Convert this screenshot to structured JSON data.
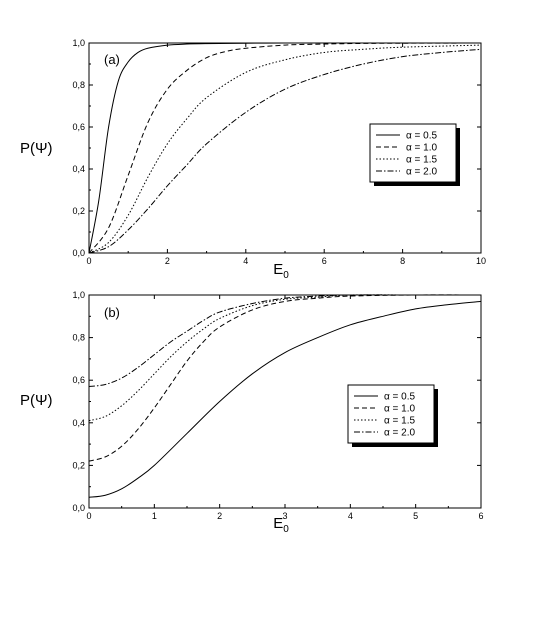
{
  "chart_data": [
    {
      "type": "line",
      "panel_label": "(a)",
      "xlabel": "E",
      "xlabel_sub": "0",
      "ylabel": "P(Ψ)",
      "xlim": [
        0,
        10
      ],
      "ylim": [
        0,
        1.0
      ],
      "xticks": [
        0,
        2,
        4,
        6,
        8,
        10
      ],
      "xtick_labels": [
        "0",
        "2",
        "4",
        "6",
        "8",
        "10"
      ],
      "yticks": [
        0,
        0.2,
        0.4,
        0.6,
        0.8,
        1.0
      ],
      "ytick_labels": [
        "0,0",
        "0,2",
        "0,4",
        "0,6",
        "0,8",
        "1,0"
      ],
      "legend_position": "right",
      "grid": false,
      "series": [
        {
          "name": "α = 0.5",
          "style": "solid",
          "x": [
            0,
            0.25,
            0.5,
            0.75,
            1.0,
            1.25,
            1.5,
            2.0,
            2.5,
            3.0,
            4.0,
            5.0,
            6.0,
            8.0,
            10.0
          ],
          "y": [
            0.0,
            0.25,
            0.6,
            0.82,
            0.91,
            0.955,
            0.975,
            0.99,
            0.995,
            0.997,
            0.999,
            1.0,
            1.0,
            1.0,
            1.0
          ]
        },
        {
          "name": "α = 1.0",
          "style": "dashed",
          "x": [
            0,
            0.5,
            1.0,
            1.5,
            2.0,
            2.5,
            3.0,
            3.5,
            4.0,
            5.0,
            6.0,
            7.0,
            8.0,
            10.0
          ],
          "y": [
            0.0,
            0.12,
            0.37,
            0.62,
            0.78,
            0.87,
            0.93,
            0.96,
            0.975,
            0.99,
            0.995,
            0.998,
            0.999,
            1.0
          ]
        },
        {
          "name": "α = 1.5",
          "style": "dotted",
          "x": [
            0,
            0.5,
            1.0,
            1.5,
            2.0,
            2.5,
            3.0,
            4.0,
            5.0,
            6.0,
            7.0,
            8.0,
            10.0
          ],
          "y": [
            0.0,
            0.05,
            0.18,
            0.36,
            0.52,
            0.64,
            0.74,
            0.86,
            0.92,
            0.955,
            0.97,
            0.98,
            0.99
          ]
        },
        {
          "name": "α = 2.0",
          "style": "dashdot",
          "x": [
            0,
            0.5,
            1.0,
            1.5,
            2.0,
            2.5,
            3.0,
            4.0,
            5.0,
            6.0,
            7.0,
            8.0,
            9.0,
            10.0
          ],
          "y": [
            0.0,
            0.03,
            0.11,
            0.21,
            0.32,
            0.42,
            0.52,
            0.67,
            0.78,
            0.85,
            0.9,
            0.935,
            0.955,
            0.97
          ]
        }
      ]
    },
    {
      "type": "line",
      "panel_label": "(b)",
      "xlabel": "E",
      "xlabel_sub": "0",
      "ylabel": "P(Ψ)",
      "xlim": [
        0,
        6
      ],
      "ylim": [
        0,
        1.0
      ],
      "xticks": [
        0,
        1,
        2,
        3,
        4,
        5,
        6
      ],
      "xtick_labels": [
        "0",
        "1",
        "2",
        "3",
        "4",
        "5",
        "6"
      ],
      "yticks": [
        0,
        0.2,
        0.4,
        0.6,
        0.8,
        1.0
      ],
      "ytick_labels": [
        "0,0",
        "0,2",
        "0,4",
        "0,6",
        "0,8",
        "1,0"
      ],
      "legend_position": "right",
      "grid": false,
      "series": [
        {
          "name": "α = 0.5",
          "style": "solid",
          "x": [
            0,
            0.25,
            0.5,
            0.75,
            1.0,
            1.5,
            2.0,
            2.5,
            3.0,
            3.5,
            4.0,
            4.5,
            5.0,
            5.5,
            6.0
          ],
          "y": [
            0.05,
            0.06,
            0.09,
            0.14,
            0.2,
            0.35,
            0.5,
            0.63,
            0.73,
            0.8,
            0.86,
            0.9,
            0.935,
            0.955,
            0.97
          ]
        },
        {
          "name": "α = 1.0",
          "style": "dashed",
          "x": [
            0,
            0.25,
            0.5,
            0.75,
            1.0,
            1.25,
            1.5,
            1.75,
            2.0,
            2.5,
            3.0,
            3.5,
            4.0,
            5.0,
            6.0
          ],
          "y": [
            0.22,
            0.24,
            0.29,
            0.37,
            0.47,
            0.58,
            0.69,
            0.78,
            0.85,
            0.93,
            0.97,
            0.985,
            0.995,
            1.0,
            1.0
          ]
        },
        {
          "name": "α = 1.5",
          "style": "dotted",
          "x": [
            0,
            0.25,
            0.5,
            0.75,
            1.0,
            1.25,
            1.5,
            1.75,
            2.0,
            2.5,
            3.0,
            3.5,
            4.0,
            5.0,
            6.0
          ],
          "y": [
            0.41,
            0.43,
            0.48,
            0.55,
            0.63,
            0.71,
            0.78,
            0.84,
            0.89,
            0.95,
            0.98,
            0.99,
            1.0,
            1.0,
            1.0
          ]
        },
        {
          "name": "α = 2.0",
          "style": "dashdot",
          "x": [
            0,
            0.25,
            0.5,
            0.75,
            1.0,
            1.25,
            1.5,
            1.75,
            2.0,
            2.5,
            3.0,
            3.5,
            4.0,
            5.0,
            6.0
          ],
          "y": [
            0.57,
            0.58,
            0.61,
            0.66,
            0.72,
            0.78,
            0.83,
            0.88,
            0.92,
            0.96,
            0.985,
            0.995,
            1.0,
            1.0,
            1.0
          ]
        }
      ]
    }
  ]
}
